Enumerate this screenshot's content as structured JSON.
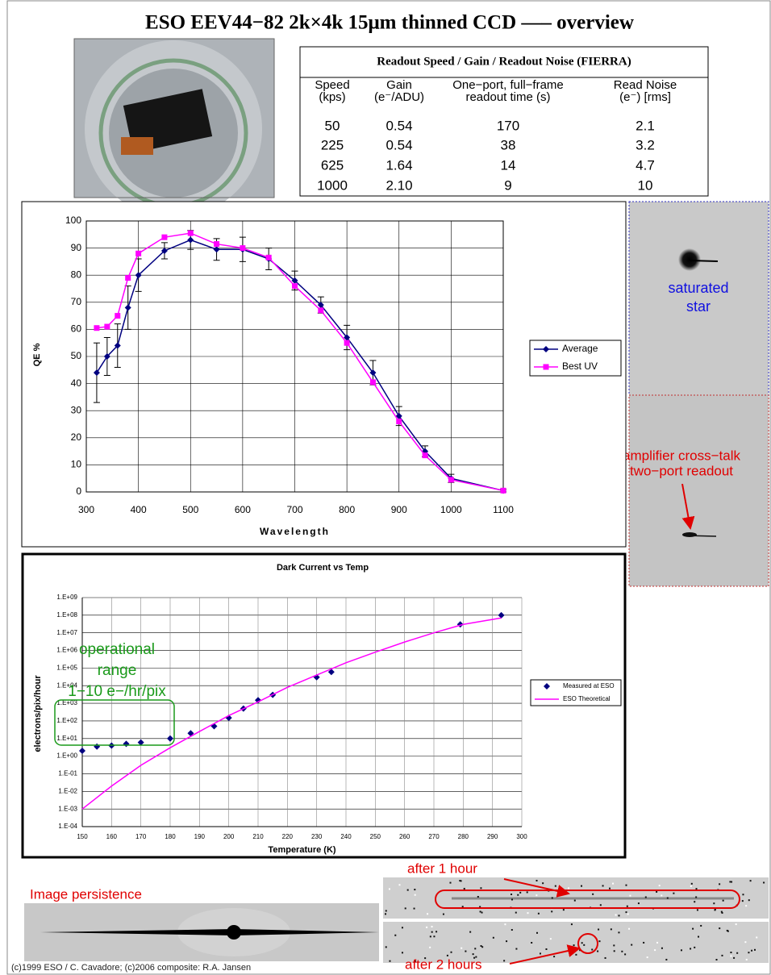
{
  "title": "ESO EEV44−82 2k×4k  15μm thinned CCD —– overview",
  "table": {
    "title": "Readout Speed / Gain / Readout Noise (FIERRA)",
    "columns": [
      [
        "Speed",
        "(kps)"
      ],
      [
        "Gain",
        "(e⁻/ADU)"
      ],
      [
        "One−port, full−frame",
        "readout time (s)"
      ],
      [
        "Read Noise",
        "(e⁻) [rms]"
      ]
    ],
    "rows": [
      [
        "50",
        "0.54",
        "170",
        "2.1"
      ],
      [
        "225",
        "0.54",
        "38",
        "3.2"
      ],
      [
        "625",
        "1.64",
        "14",
        "4.7"
      ],
      [
        "1000",
        "2.10",
        "9",
        "10"
      ]
    ]
  },
  "chart_data": [
    {
      "type": "line",
      "y_label": "QE %",
      "x_label": "Wavelength",
      "x": [
        320,
        340,
        360,
        380,
        400,
        450,
        500,
        550,
        600,
        650,
        700,
        750,
        800,
        850,
        900,
        950,
        1000,
        1100
      ],
      "series": [
        {
          "name": "Average",
          "color": "#000080",
          "marker": "diamond",
          "style": "line",
          "values": [
            44,
            50,
            54,
            68,
            80,
            89,
            93,
            89.5,
            89.5,
            86,
            78,
            69,
            57,
            44,
            28,
            15,
            5,
            0.5
          ],
          "errors": [
            11,
            7,
            8,
            8,
            6,
            3,
            3.5,
            4,
            4.5,
            4,
            3.5,
            3,
            4.5,
            4.5,
            3.5,
            2,
            1.5,
            0.5
          ]
        },
        {
          "name": "Best UV",
          "color": "#ff00ff",
          "marker": "square",
          "style": "line",
          "values": [
            60.5,
            61,
            65,
            79,
            88,
            94,
            95.5,
            91.5,
            90,
            86.5,
            76,
            67,
            55,
            40.5,
            26,
            13.5,
            4.5,
            0.5
          ]
        }
      ],
      "xlim": [
        300,
        1100
      ],
      "xticks": [
        300,
        400,
        500,
        600,
        700,
        800,
        900,
        1000,
        1100
      ],
      "ylim": [
        0,
        100
      ],
      "yticks": [
        0,
        10,
        20,
        30,
        40,
        50,
        60,
        70,
        80,
        90,
        100
      ],
      "grid": true,
      "legend": "right"
    },
    {
      "type": "line",
      "title": "Dark Current vs Temp",
      "y_label": "electrons/pix/hour",
      "x_label": "Temperature (K)",
      "yscale": "log",
      "series": [
        {
          "name": "Measured at ESO",
          "color": "#000080",
          "marker": "diamond",
          "style": "markers",
          "x": [
            150,
            155,
            160,
            165,
            170,
            180,
            187,
            195,
            200,
            205,
            210,
            215,
            230,
            235,
            279,
            293
          ],
          "values": [
            2,
            3.5,
            4,
            5,
            6,
            10,
            20,
            50,
            150,
            500,
            1500,
            3000,
            30000,
            60000,
            30000000,
            100000000
          ]
        },
        {
          "name": "ESO Theoretical",
          "color": "#ff00ff",
          "marker": "none",
          "style": "line",
          "x": [
            150,
            160,
            170,
            180,
            190,
            200,
            210,
            220,
            230,
            240,
            250,
            260,
            270,
            280,
            293
          ],
          "values": [
            0.001,
            0.02,
            0.3,
            3,
            25,
            200,
            1200,
            8000,
            40000,
            200000,
            800000,
            3000000,
            10000000,
            30000000,
            70000000
          ]
        }
      ],
      "xlim": [
        150,
        300
      ],
      "xticks": [
        150,
        160,
        170,
        180,
        190,
        200,
        210,
        220,
        230,
        240,
        250,
        260,
        270,
        280,
        290,
        300
      ],
      "ylim": [
        0.0001,
        1000000000
      ],
      "yticks": [
        {
          "value": 0.0001,
          "label": "1.E-04"
        },
        {
          "value": 0.001,
          "label": "1.E-03"
        },
        {
          "value": 0.01,
          "label": "1.E-02"
        },
        {
          "value": 0.1,
          "label": "1.E-01"
        },
        {
          "value": 1,
          "label": "1.E+00"
        },
        {
          "value": 10,
          "label": "1.E+01"
        },
        {
          "value": 100,
          "label": "1.E+02"
        },
        {
          "value": 1000,
          "label": "1.E+03"
        },
        {
          "value": 10000,
          "label": "1.E+04"
        },
        {
          "value": 100000,
          "label": "1.E+05"
        },
        {
          "value": 1000000,
          "label": "1.E+06"
        },
        {
          "value": 10000000,
          "label": "1.E+07"
        },
        {
          "value": 100000000,
          "label": "1.E+08"
        },
        {
          "value": 1000000000,
          "label": "1.E+09"
        }
      ],
      "grid": true,
      "legend": "right",
      "annotation": [
        "operational",
        "range",
        "1−10 e−/hr/pix"
      ]
    }
  ],
  "annotations": {
    "saturated": [
      "saturated",
      "star"
    ],
    "crosstalk": [
      "amplifier cross−talk",
      "two−port readout"
    ],
    "persistence": "Image persistence",
    "after1": "after 1 hour",
    "after2": "after 2 hours"
  },
  "footer": "(c)1999 ESO / C. Cavadore;  (c)2006 composite: R.A. Jansen"
}
